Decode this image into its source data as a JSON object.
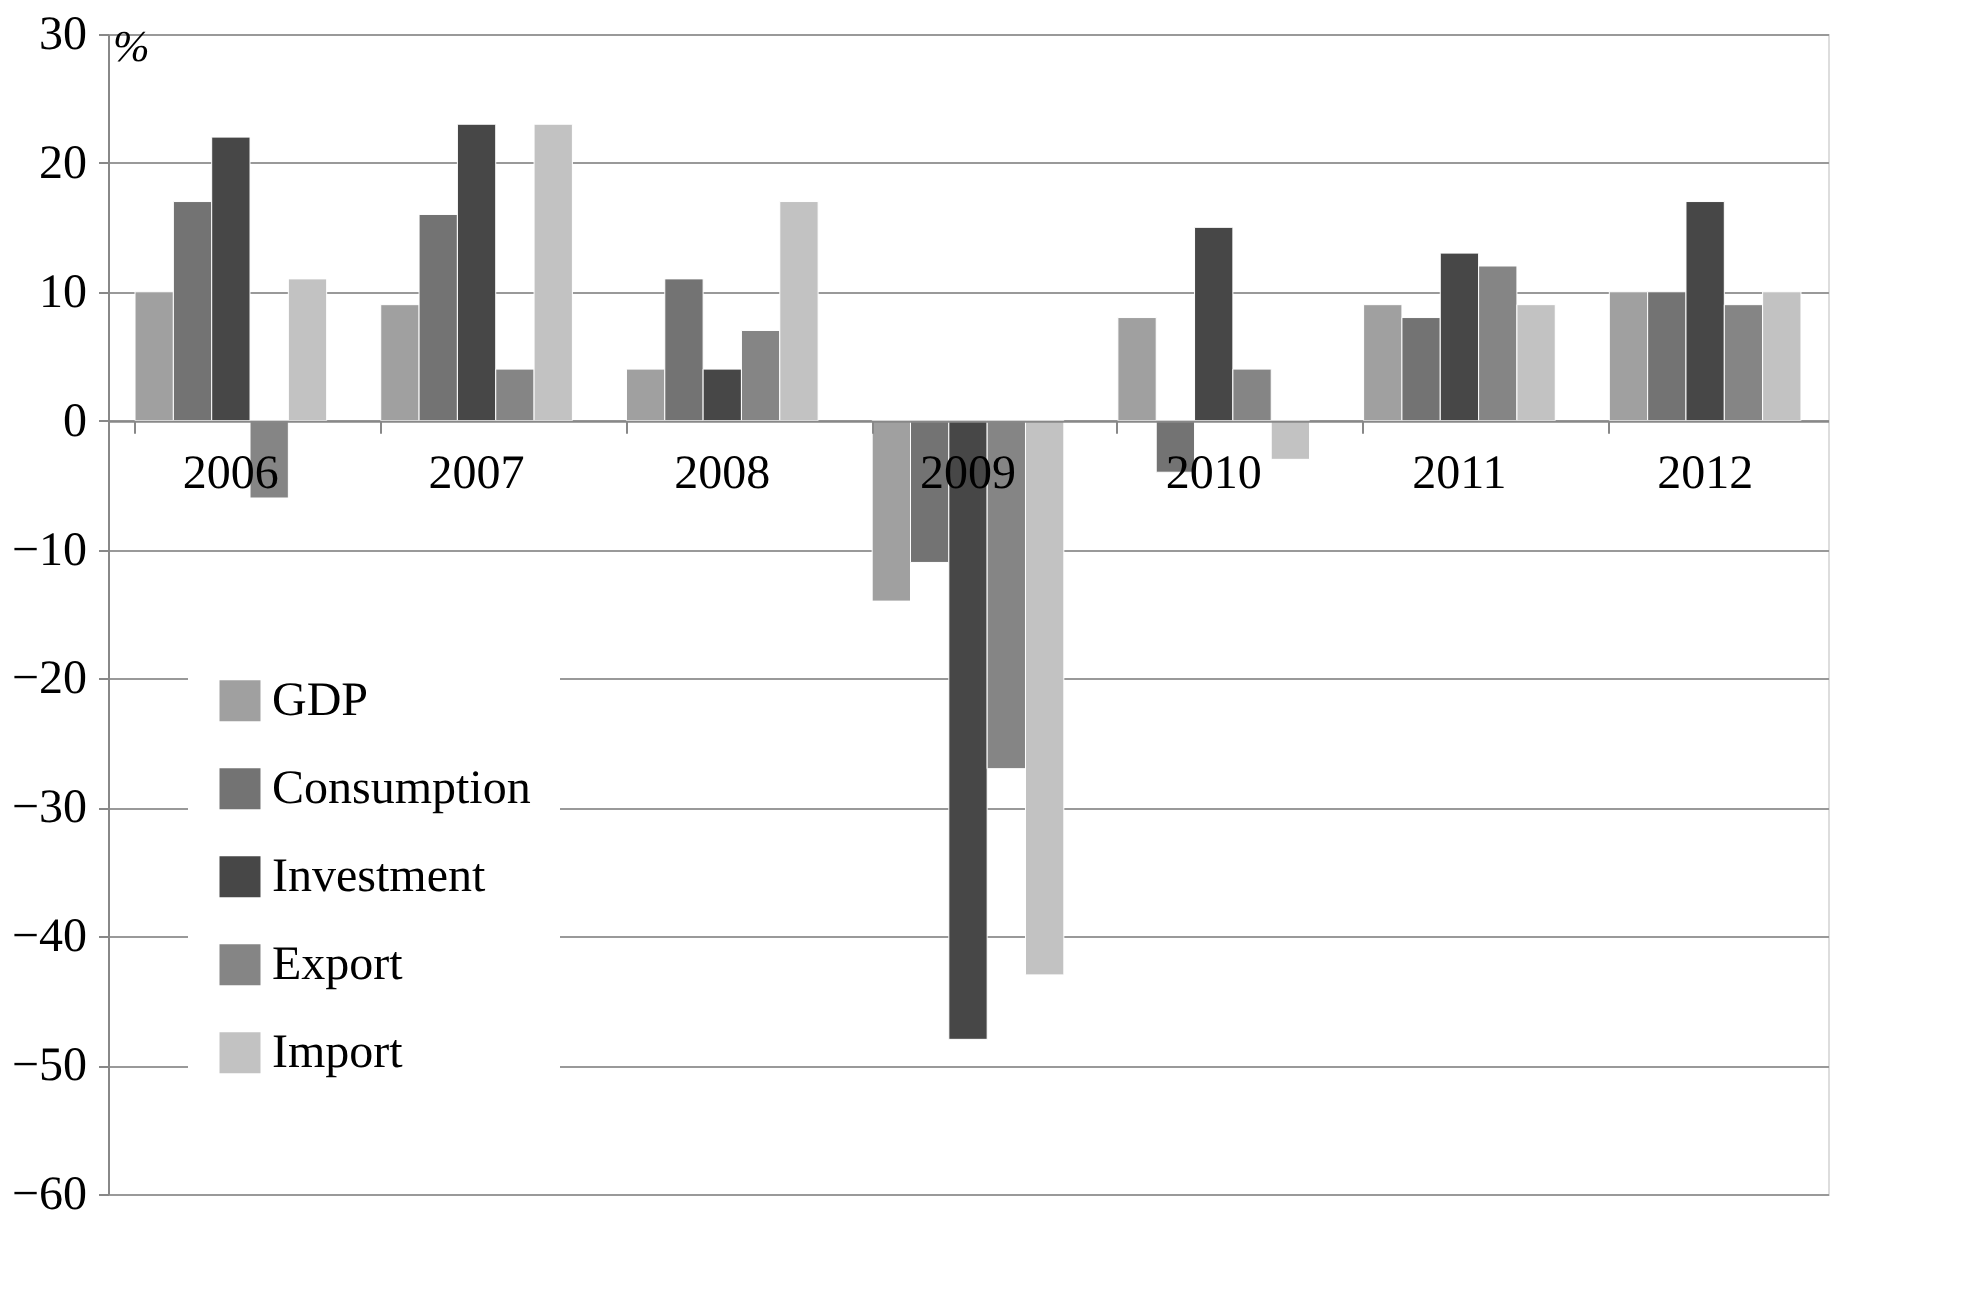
{
  "chart_data": {
    "type": "bar",
    "ylabel": "%",
    "categories": [
      "2006",
      "2007",
      "2008",
      "2009",
      "2010",
      "2011",
      "2012"
    ],
    "series": [
      {
        "name": "GDP",
        "color": "#a0a0a0",
        "values": [
          10,
          9,
          4,
          -14,
          8,
          9,
          10
        ]
      },
      {
        "name": "Consumption",
        "color": "#737373",
        "values": [
          17,
          16,
          11,
          -11,
          -4,
          8,
          10
        ]
      },
      {
        "name": "Investment",
        "color": "#474747",
        "values": [
          22,
          23,
          4,
          -48,
          15,
          13,
          17
        ]
      },
      {
        "name": "Export",
        "color": "#858585",
        "values": [
          -6,
          4,
          7,
          -27,
          4,
          12,
          9
        ]
      },
      {
        "name": "Import",
        "color": "#c2c2c2",
        "values": [
          11,
          23,
          17,
          -43,
          -3,
          9,
          10
        ]
      }
    ],
    "ylim": [
      -60,
      30
    ],
    "yticks": [
      -60,
      -50,
      -40,
      -30,
      -20,
      -10,
      0,
      10,
      20,
      30
    ],
    "grid": "y",
    "legend": "bottom left"
  }
}
